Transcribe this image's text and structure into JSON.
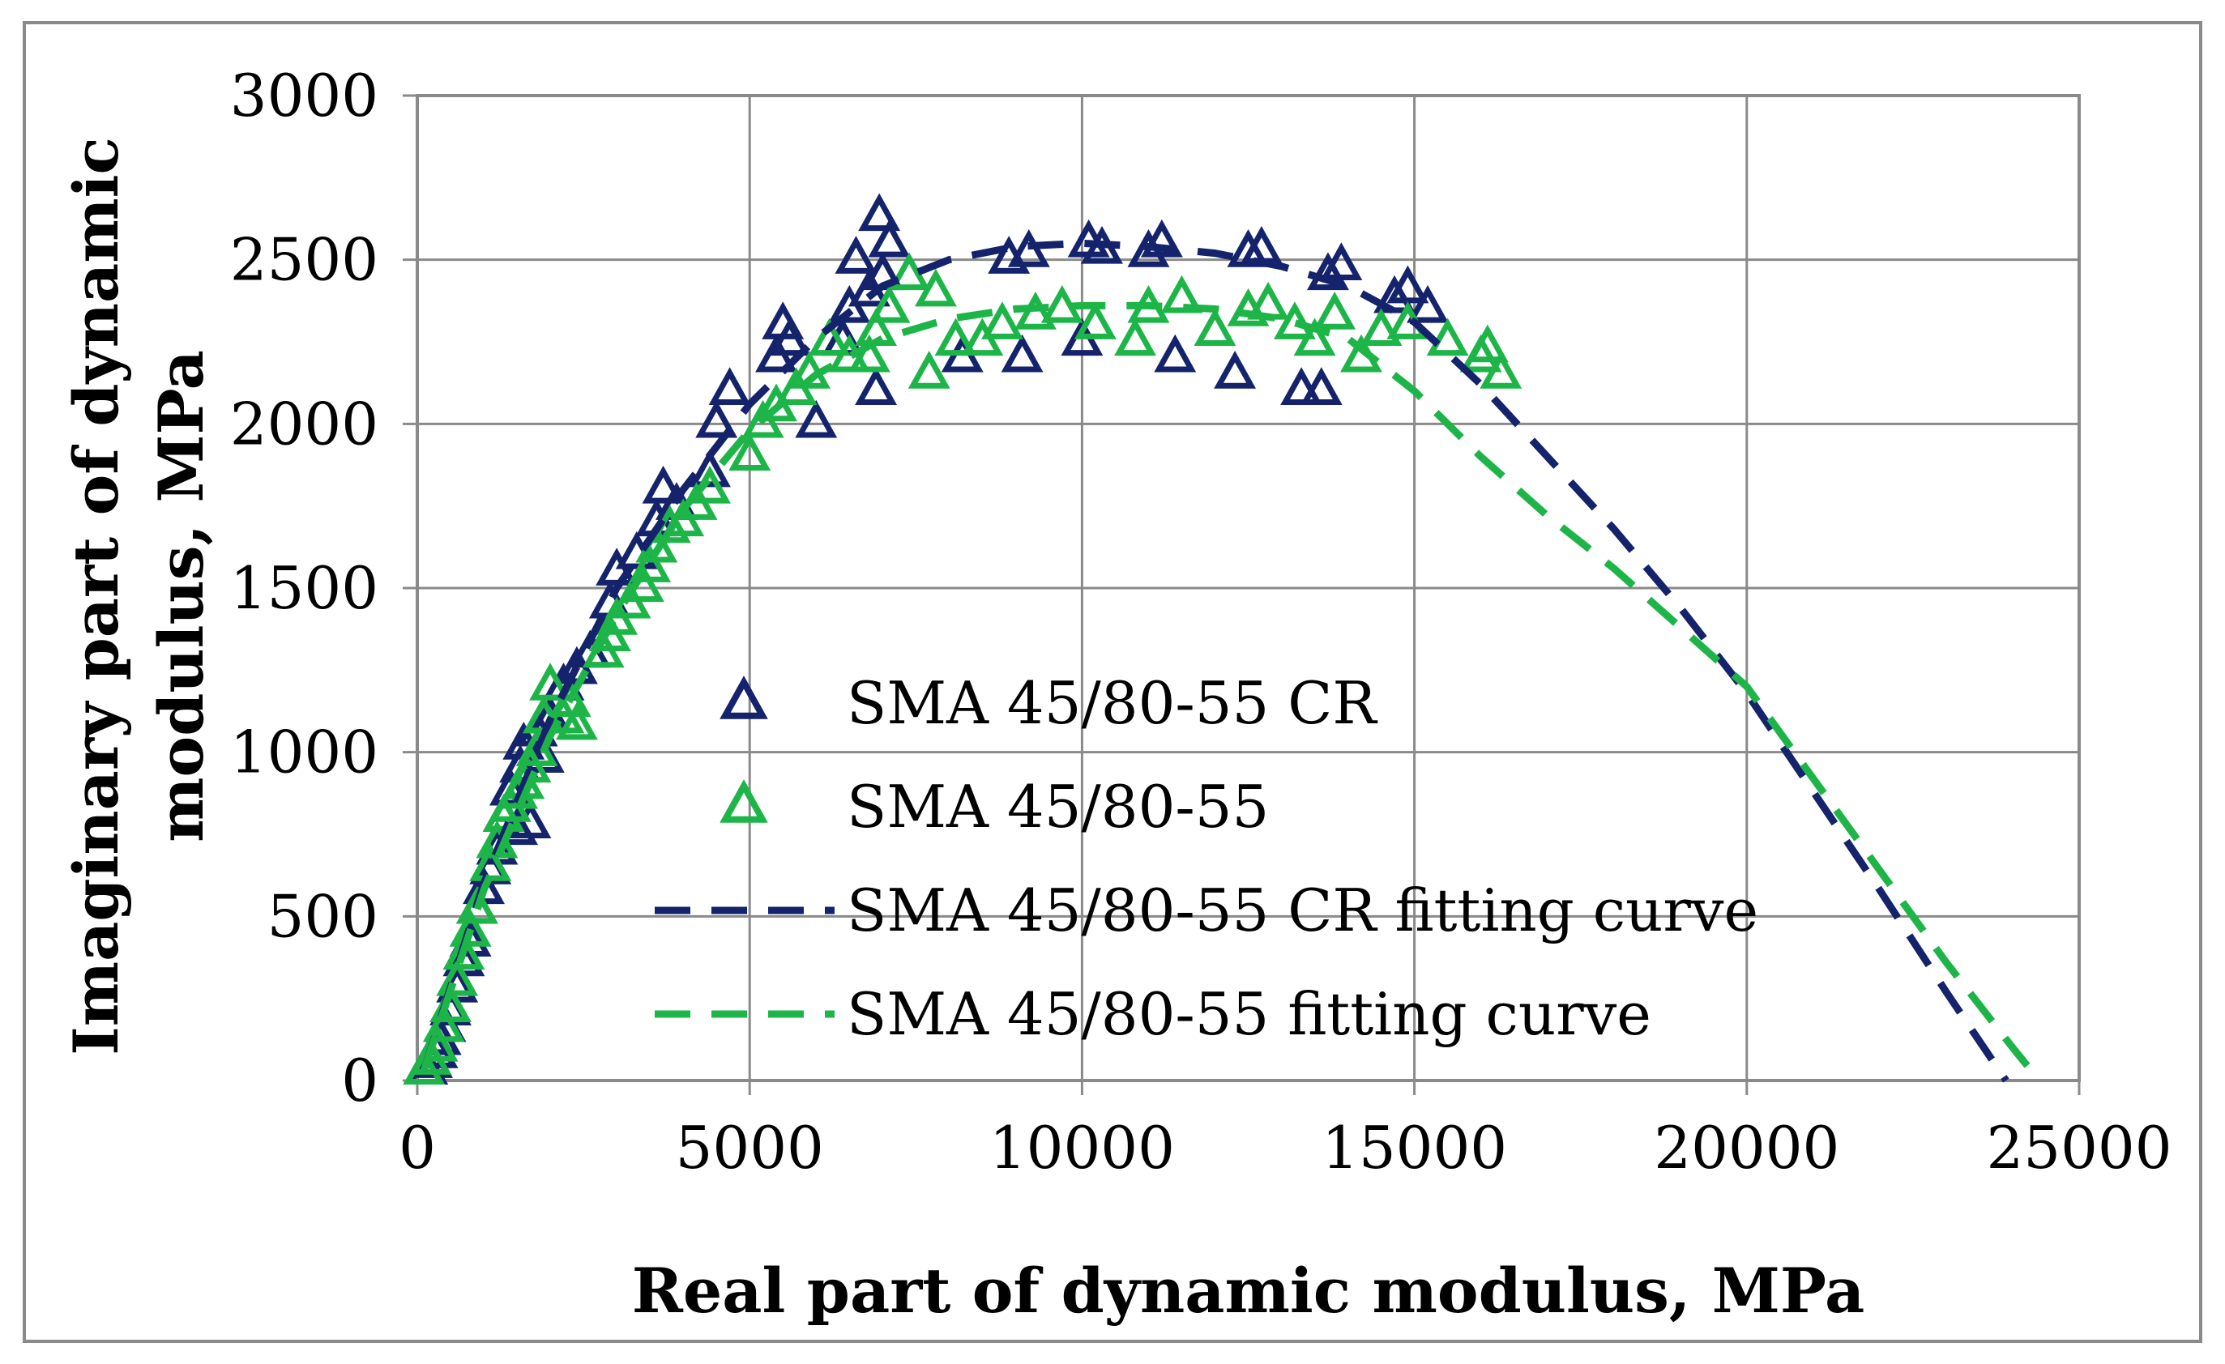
{
  "chart_data": {
    "type": "scatter",
    "title": "",
    "xlabel": "Real part of dynamic modulus, MPa",
    "ylabel": [
      "Imaginary part of dynamic",
      "modulus, MPa"
    ],
    "xlim": [
      0,
      25000
    ],
    "ylim": [
      0,
      3000
    ],
    "x_ticks": [
      0,
      5000,
      10000,
      15000,
      20000,
      25000
    ],
    "y_ticks": [
      0,
      500,
      1000,
      1500,
      2000,
      2500,
      3000
    ],
    "x_tick_labels": [
      "0",
      "5000",
      "10000",
      "15000",
      "20000",
      "25000"
    ],
    "y_tick_labels": [
      "0",
      "500",
      "1000",
      "1500",
      "2000",
      "2500",
      "3000"
    ],
    "grid": true,
    "legend_position": "center",
    "colors": {
      "navy": "#14236b",
      "green": "#1db548"
    },
    "series": [
      {
        "name": "SMA 45/80-55 CR",
        "kind": "markers",
        "marker": "triangle-open",
        "color": "#14236b",
        "points": [
          [
            150,
            30
          ],
          [
            220,
            50
          ],
          [
            300,
            80
          ],
          [
            350,
            120
          ],
          [
            420,
            160
          ],
          [
            500,
            210
          ],
          [
            600,
            280
          ],
          [
            700,
            360
          ],
          [
            800,
            420
          ],
          [
            900,
            520
          ],
          [
            1000,
            580
          ],
          [
            1100,
            640
          ],
          [
            1200,
            700
          ],
          [
            1300,
            800
          ],
          [
            1400,
            880
          ],
          [
            1500,
            760
          ],
          [
            1550,
            950
          ],
          [
            1600,
            1020
          ],
          [
            1700,
            780
          ],
          [
            1800,
            1060
          ],
          [
            1900,
            980
          ],
          [
            2000,
            1100
          ],
          [
            2200,
            1200
          ],
          [
            2400,
            1250
          ],
          [
            2600,
            1300
          ],
          [
            2900,
            1450
          ],
          [
            3000,
            1550
          ],
          [
            3300,
            1600
          ],
          [
            3600,
            1700
          ],
          [
            3700,
            1800
          ],
          [
            3900,
            1750
          ],
          [
            4400,
            1850
          ],
          [
            4500,
            2000
          ],
          [
            4700,
            2100
          ],
          [
            5400,
            2200
          ],
          [
            5500,
            2300
          ],
          [
            5600,
            2250
          ],
          [
            6000,
            2000
          ],
          [
            6400,
            2250
          ],
          [
            6500,
            2350
          ],
          [
            6600,
            2500
          ],
          [
            6800,
            2400
          ],
          [
            6900,
            2100
          ],
          [
            6950,
            2630
          ],
          [
            7000,
            2450
          ],
          [
            7100,
            2550
          ],
          [
            8200,
            2200
          ],
          [
            8900,
            2500
          ],
          [
            9100,
            2200
          ],
          [
            9200,
            2520
          ],
          [
            10000,
            2250
          ],
          [
            10100,
            2550
          ],
          [
            10300,
            2530
          ],
          [
            11000,
            2520
          ],
          [
            11200,
            2550
          ],
          [
            11400,
            2200
          ],
          [
            12300,
            2150
          ],
          [
            12500,
            2520
          ],
          [
            12700,
            2530
          ],
          [
            13300,
            2100
          ],
          [
            13600,
            2100
          ],
          [
            13700,
            2450
          ],
          [
            13900,
            2480
          ],
          [
            14700,
            2380
          ],
          [
            14900,
            2410
          ],
          [
            15200,
            2350
          ]
        ]
      },
      {
        "name": "SMA 45/80-55",
        "kind": "markers",
        "marker": "triangle-open",
        "color": "#1db548",
        "points": [
          [
            100,
            30
          ],
          [
            200,
            60
          ],
          [
            300,
            100
          ],
          [
            400,
            160
          ],
          [
            500,
            220
          ],
          [
            600,
            300
          ],
          [
            700,
            380
          ],
          [
            800,
            450
          ],
          [
            900,
            520
          ],
          [
            1100,
            650
          ],
          [
            1200,
            720
          ],
          [
            1300,
            800
          ],
          [
            1400,
            830
          ],
          [
            1500,
            870
          ],
          [
            1600,
            900
          ],
          [
            1700,
            950
          ],
          [
            1800,
            1000
          ],
          [
            1900,
            1100
          ],
          [
            2000,
            1200
          ],
          [
            2200,
            1100
          ],
          [
            2300,
            1150
          ],
          [
            2400,
            1080
          ],
          [
            2800,
            1300
          ],
          [
            2900,
            1350
          ],
          [
            3000,
            1400
          ],
          [
            3200,
            1450
          ],
          [
            3400,
            1500
          ],
          [
            3500,
            1560
          ],
          [
            3600,
            1620
          ],
          [
            3800,
            1680
          ],
          [
            4000,
            1700
          ],
          [
            4200,
            1750
          ],
          [
            4400,
            1800
          ],
          [
            5000,
            1900
          ],
          [
            5200,
            2000
          ],
          [
            5400,
            2050
          ],
          [
            5700,
            2100
          ],
          [
            5900,
            2150
          ],
          [
            6200,
            2250
          ],
          [
            6500,
            2200
          ],
          [
            6800,
            2200
          ],
          [
            6900,
            2280
          ],
          [
            7100,
            2350
          ],
          [
            7400,
            2450
          ],
          [
            7800,
            2400
          ],
          [
            7700,
            2150
          ],
          [
            8100,
            2250
          ],
          [
            8500,
            2250
          ],
          [
            8800,
            2300
          ],
          [
            9300,
            2330
          ],
          [
            9700,
            2350
          ],
          [
            10200,
            2300
          ],
          [
            10800,
            2250
          ],
          [
            11000,
            2350
          ],
          [
            11500,
            2380
          ],
          [
            12000,
            2280
          ],
          [
            12500,
            2340
          ],
          [
            12800,
            2360
          ],
          [
            13200,
            2300
          ],
          [
            13500,
            2250
          ],
          [
            13800,
            2330
          ],
          [
            14200,
            2200
          ],
          [
            14500,
            2280
          ],
          [
            14900,
            2300
          ],
          [
            15500,
            2250
          ],
          [
            16000,
            2200
          ],
          [
            16100,
            2230
          ],
          [
            16300,
            2150
          ]
        ]
      },
      {
        "name": "SMA 45/80-55 CR fitting curve",
        "kind": "dashed-line",
        "color": "#14236b",
        "points": [
          [
            100,
            30
          ],
          [
            1000,
            600
          ],
          [
            2000,
            1100
          ],
          [
            3000,
            1500
          ],
          [
            4000,
            1800
          ],
          [
            5000,
            2060
          ],
          [
            6000,
            2260
          ],
          [
            7000,
            2420
          ],
          [
            8000,
            2500
          ],
          [
            9000,
            2540
          ],
          [
            10000,
            2550
          ],
          [
            11000,
            2540
          ],
          [
            12000,
            2520
          ],
          [
            13000,
            2480
          ],
          [
            14000,
            2420
          ],
          [
            15000,
            2310
          ],
          [
            16000,
            2120
          ],
          [
            17000,
            1900
          ],
          [
            18000,
            1680
          ],
          [
            19000,
            1440
          ],
          [
            20000,
            1180
          ],
          [
            21000,
            880
          ],
          [
            22000,
            580
          ],
          [
            23000,
            270
          ],
          [
            23900,
            0
          ]
        ]
      },
      {
        "name": "SMA 45/80-55 fitting curve",
        "kind": "dashed-line",
        "color": "#1db548",
        "points": [
          [
            100,
            30
          ],
          [
            1000,
            580
          ],
          [
            2000,
            1050
          ],
          [
            3000,
            1420
          ],
          [
            4000,
            1740
          ],
          [
            5000,
            1980
          ],
          [
            6000,
            2150
          ],
          [
            7000,
            2260
          ],
          [
            8000,
            2320
          ],
          [
            9000,
            2350
          ],
          [
            10000,
            2360
          ],
          [
            11000,
            2360
          ],
          [
            12000,
            2350
          ],
          [
            13000,
            2320
          ],
          [
            14000,
            2260
          ],
          [
            15000,
            2100
          ],
          [
            16000,
            1900
          ],
          [
            17000,
            1720
          ],
          [
            18000,
            1560
          ],
          [
            19000,
            1380
          ],
          [
            20000,
            1200
          ],
          [
            21000,
            920
          ],
          [
            22000,
            640
          ],
          [
            23000,
            360
          ],
          [
            24000,
            100
          ],
          [
            24400,
            0
          ]
        ]
      }
    ]
  }
}
